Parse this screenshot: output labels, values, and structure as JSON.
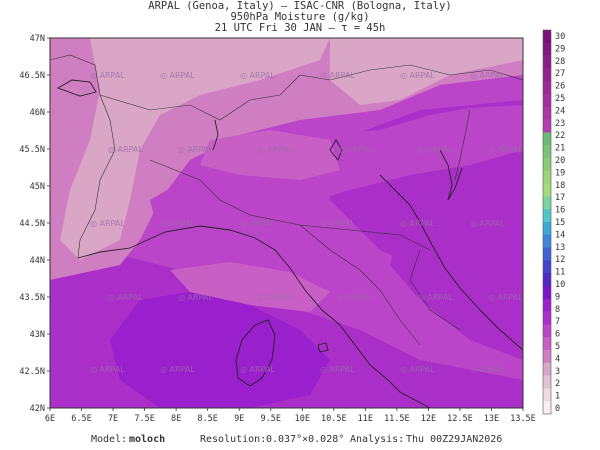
{
  "header": {
    "line1": "ARPAL (Genoa, Italy)  —  ISAC-CNR (Bologna, Italy)",
    "line2": "950hPa Moisture (g/kg)",
    "line3": "21 UTC Fri 30 JAN  —  τ = 45h"
  },
  "map": {
    "lat_labels": [
      "47N",
      "46.5N",
      "46N",
      "45.5N",
      "45N",
      "44.5N",
      "44N",
      "43.5N",
      "43N",
      "42.5N",
      "42N"
    ],
    "lon_labels": [
      "6E",
      "6.5E",
      "7E",
      "7.5E",
      "8E",
      "8.5E",
      "9E",
      "9.5E",
      "10E",
      "10.5E",
      "11E",
      "11.5E",
      "12E",
      "12.5E",
      "13E",
      "13.5E"
    ],
    "watermark": "ARPAL",
    "field_colors": {
      "level_2": "#d9a6c6",
      "level_3": "#cf7ec2",
      "level_4": "#c85fc5",
      "level_5": "#bb45c8",
      "level_6": "#a92fc8",
      "level_7": "#9a1fcd"
    }
  },
  "colorbar": {
    "labels": [
      "30",
      "29",
      "28",
      "27",
      "26",
      "25",
      "24",
      "23",
      "22",
      "21",
      "20",
      "19",
      "18",
      "17",
      "16",
      "15",
      "14",
      "13",
      "12",
      "11",
      "10",
      "9",
      "8",
      "7",
      "6",
      "5",
      "4",
      "3",
      "2",
      "1",
      "0"
    ],
    "colors": [
      "#7a1078",
      "#82167f",
      "#8a1c87",
      "#93228f",
      "#9b2897",
      "#a42e9f",
      "#ac35a7",
      "#b43caf",
      "#6ab87a",
      "#7cc27a",
      "#8ccc78",
      "#9cd478",
      "#a4d97c",
      "#7fd3a1",
      "#51c7c7",
      "#3aa9d6",
      "#3f86d6",
      "#3f63d3",
      "#4242c8",
      "#5227c2",
      "#7b14c8",
      "#9a1fcd",
      "#a92fc8",
      "#bb45c8",
      "#c85fc5",
      "#cf7ec2",
      "#d9a6c6",
      "#e5c3d6",
      "#efdbe6",
      "#f9eef4"
    ]
  },
  "footer": {
    "model_label": "Model:",
    "model_value": "moloch",
    "resolution_label": "Resolution:",
    "resolution_value": "0.037°×0.028°",
    "analysis_label": "Analysis:",
    "analysis_value": "Thu 00Z29JAN2026"
  }
}
